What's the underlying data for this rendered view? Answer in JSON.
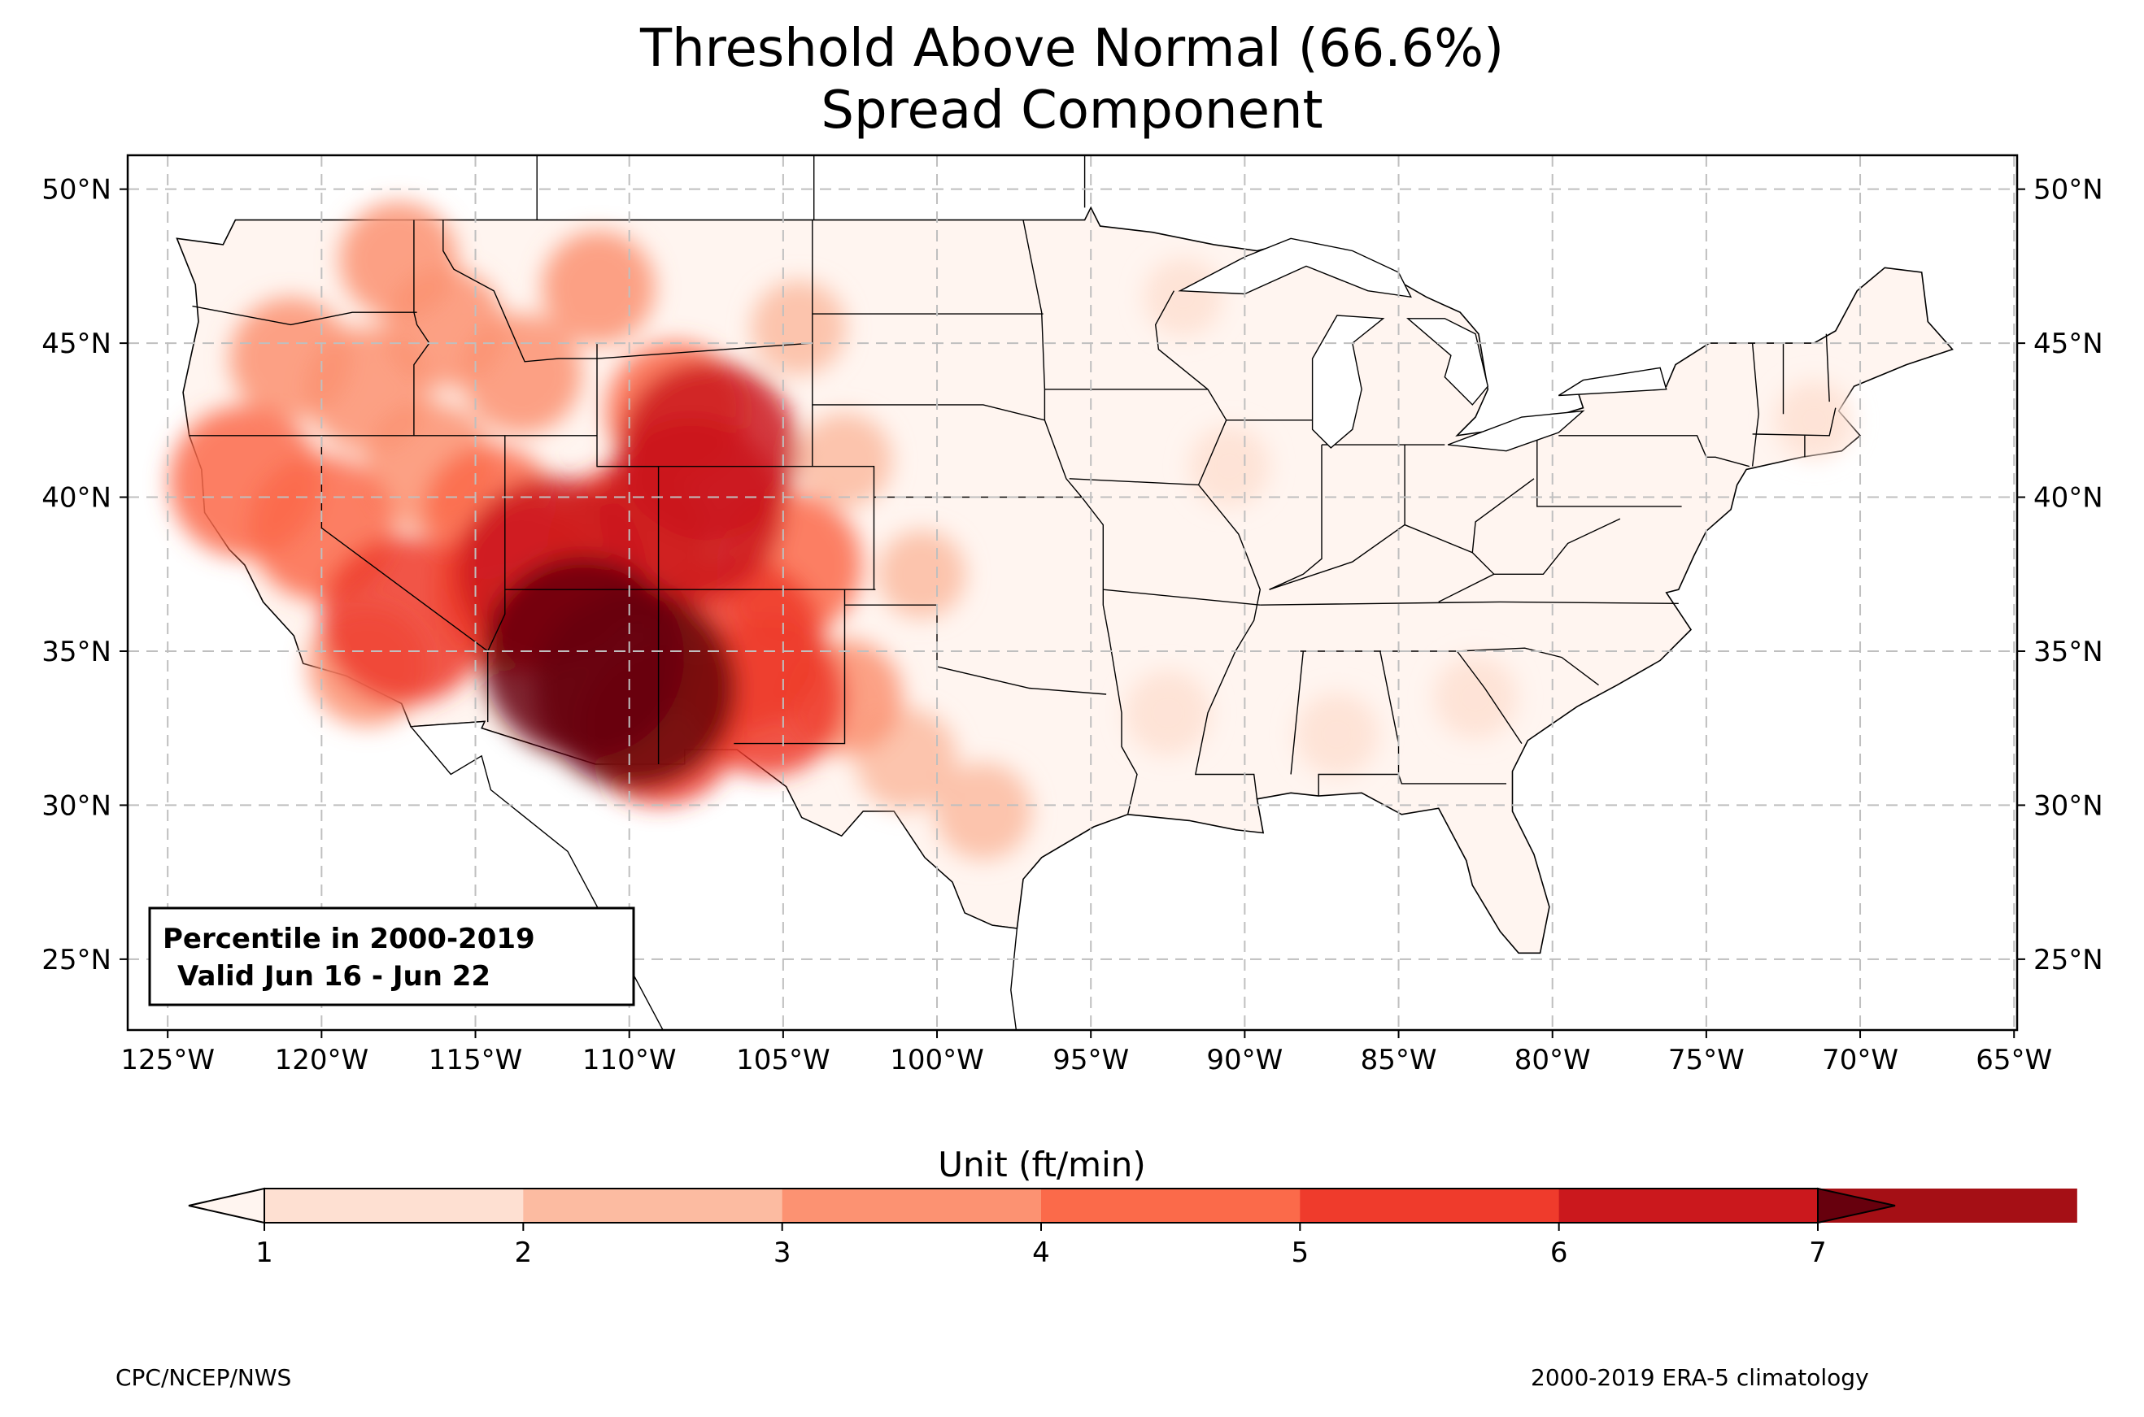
{
  "title": {
    "line1": "Threshold Above Normal (66.6%)",
    "line2": "Spread Component"
  },
  "map": {
    "extent": {
      "lon_min": -126.3,
      "lon_max": -64.9,
      "lat_min": 22.7,
      "lat_max": 51.1
    },
    "lon_ticks": [
      -125,
      -120,
      -115,
      -110,
      -105,
      -100,
      -95,
      -90,
      -85,
      -80,
      -75,
      -70,
      -65
    ],
    "lon_tick_labels": [
      "125°W",
      "120°W",
      "115°W",
      "110°W",
      "105°W",
      "100°W",
      "95°W",
      "90°W",
      "85°W",
      "80°W",
      "75°W",
      "70°W",
      "65°W"
    ],
    "lat_ticks": [
      25,
      30,
      35,
      40,
      45,
      50
    ],
    "lat_tick_labels": [
      "25°N",
      "30°N",
      "35°N",
      "40°N",
      "45°N",
      "50°N"
    ],
    "grid": true,
    "info_box": {
      "line1": "Percentile in 2000-2019",
      "line2": "Valid Jun 16 - Jun 22"
    },
    "land_color": "#fff5f0",
    "hotspots": [
      {
        "lon": -111.5,
        "lat": 34.8,
        "value": 7
      },
      {
        "lon": -109.8,
        "lat": 33.8,
        "value": 7
      },
      {
        "lon": -112.5,
        "lat": 37.6,
        "value": 6.4
      },
      {
        "lon": -108.0,
        "lat": 39.6,
        "value": 6.2
      },
      {
        "lon": -107.4,
        "lat": 41.5,
        "value": 6
      },
      {
        "lon": -106.5,
        "lat": 35.2,
        "value": 5.8
      },
      {
        "lon": -117.3,
        "lat": 36.0,
        "value": 5.5
      },
      {
        "lon": -113.5,
        "lat": 37.0,
        "value": 5.5
      },
      {
        "lon": -110.0,
        "lat": 38.4,
        "value": 5.3
      },
      {
        "lon": -109.0,
        "lat": 32.6,
        "value": 5.2
      },
      {
        "lon": -105.5,
        "lat": 33.5,
        "value": 5
      },
      {
        "lon": -122.5,
        "lat": 40.5,
        "value": 4.8
      },
      {
        "lon": -120.0,
        "lat": 39.0,
        "value": 4.5
      },
      {
        "lon": -104.8,
        "lat": 37.8,
        "value": 4.5
      },
      {
        "lon": -108.5,
        "lat": 42.8,
        "value": 4.2
      },
      {
        "lon": -114.5,
        "lat": 39.5,
        "value": 4
      },
      {
        "lon": -116.5,
        "lat": 41.0,
        "value": 3.8
      },
      {
        "lon": -118.5,
        "lat": 43.5,
        "value": 3.6
      },
      {
        "lon": -121.0,
        "lat": 44.5,
        "value": 3.5
      },
      {
        "lon": -116.0,
        "lat": 45.5,
        "value": 3.4
      },
      {
        "lon": -113.5,
        "lat": 44.0,
        "value": 3.4
      },
      {
        "lon": -117.5,
        "lat": 47.7,
        "value": 3.3
      },
      {
        "lon": -111.0,
        "lat": 46.8,
        "value": 3.1
      },
      {
        "lon": -118.5,
        "lat": 34.5,
        "value": 3.4
      },
      {
        "lon": -103.0,
        "lat": 33.5,
        "value": 3.2
      },
      {
        "lon": -101.0,
        "lat": 31.5,
        "value": 2.6
      },
      {
        "lon": -98.5,
        "lat": 29.8,
        "value": 2.4
      },
      {
        "lon": -104.5,
        "lat": 45.5,
        "value": 2.3
      },
      {
        "lon": -103.0,
        "lat": 41.2,
        "value": 2.3
      },
      {
        "lon": -100.5,
        "lat": 37.5,
        "value": 2
      },
      {
        "lon": -92.5,
        "lat": 33.0,
        "value": 1.9
      },
      {
        "lon": -87.0,
        "lat": 32.3,
        "value": 1.8
      },
      {
        "lon": -82.5,
        "lat": 33.5,
        "value": 1.8
      },
      {
        "lon": -90.5,
        "lat": 41.0,
        "value": 1.7
      },
      {
        "lon": -92.0,
        "lat": 46.5,
        "value": 1.6
      },
      {
        "lon": -71.5,
        "lat": 42.5,
        "value": 1.6
      }
    ]
  },
  "colorbar": {
    "label": "Unit (ft/min)",
    "ticks": [
      "1",
      "2",
      "3",
      "4",
      "5",
      "6",
      "7"
    ],
    "boundaries": [
      1,
      2,
      3,
      4,
      5,
      6,
      7
    ],
    "colors": [
      "#fee0d2",
      "#fcbba1",
      "#fc9272",
      "#fb6a4a",
      "#ef3b2c",
      "#cb181d",
      "#a50f15"
    ],
    "under_color": "#fff5f0",
    "over_color": "#67000d"
  },
  "credits": {
    "left": "CPC/NCEP/NWS",
    "right": "2000-2019 ERA-5 climatology"
  }
}
